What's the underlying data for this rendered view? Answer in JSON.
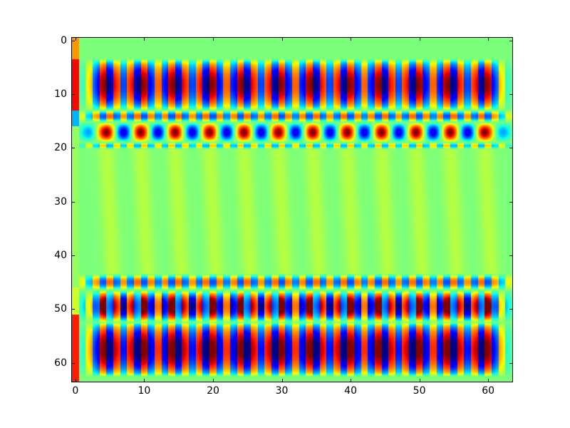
{
  "chart_data": {
    "type": "heatmap",
    "title": "",
    "xlabel": "",
    "ylabel": "",
    "colormap": "jet",
    "grid_shape": [
      64,
      64
    ],
    "x_range": [
      -0.5,
      63.5
    ],
    "y_range": [
      -0.5,
      63.5
    ],
    "y_inverted": true,
    "x_ticks": [
      0,
      10,
      20,
      30,
      40,
      50,
      60
    ],
    "y_ticks": [
      0,
      10,
      20,
      30,
      40,
      50,
      60
    ],
    "background_color": "#ffffff",
    "axes_border_color": "#000000",
    "pattern": {
      "background_level": 0.5,
      "clusters": {
        "first_center": 4.5,
        "period": 5.0,
        "count": 12
      },
      "bands": [
        {
          "y0": 3.5,
          "y1": 13.0,
          "kind": "alt_bars",
          "amp": 0.5,
          "sigma": 1.6,
          "yexp": 0.6,
          "base_frac": 0.05
        },
        {
          "y0": 13.0,
          "y1": 15.2,
          "kind": "alt_bars",
          "amp": 0.3,
          "sigma": 1.8,
          "yexp": 1.0,
          "flip": true,
          "base_frac": 0.3
        },
        {
          "y0": 15.2,
          "y1": 19.0,
          "kind": "blob",
          "amp": 0.5,
          "sigma": 2.2,
          "freq": 1.0,
          "yexp": 1.0
        },
        {
          "y0": 19.0,
          "y1": 20.2,
          "kind": "alt_bars",
          "amp": 0.2,
          "sigma": 1.8,
          "yexp": 1.0,
          "base_frac": 0.35
        },
        {
          "y0": 20.2,
          "y1": 43.5,
          "kind": "streaks",
          "amp": 0.07,
          "sigma": 0.9,
          "drift": 0.04
        },
        {
          "y0": 43.5,
          "y1": 46.5,
          "kind": "alt_bars",
          "amp": 0.3,
          "sigma": 1.8,
          "yexp": 1.0,
          "flip": true,
          "base_frac": 0.35
        },
        {
          "y0": 46.5,
          "y1": 52.5,
          "kind": "mix",
          "amp": 0.42,
          "blob_amp": 0.18,
          "freq": 0.9,
          "sigma": 2.0,
          "yexp": 0.8
        },
        {
          "y0": 52.5,
          "y1": 62.5,
          "kind": "alt_bars",
          "amp": 0.52,
          "sigma": 1.7,
          "yexp": 0.55,
          "base_frac": 0.05
        }
      ],
      "left_column": [
        {
          "y0": -0.5,
          "y1": 3.5,
          "v": 0.75
        },
        {
          "y0": 3.5,
          "y1": 13.0,
          "v": 0.9
        },
        {
          "y0": 13.0,
          "y1": 16.0,
          "v": 0.3
        },
        {
          "y0": 16.0,
          "y1": 46.0,
          "v": 0.53
        },
        {
          "y0": 46.0,
          "y1": 51.0,
          "v": 0.6
        },
        {
          "y0": 51.0,
          "y1": 63.5,
          "v": 0.88
        }
      ]
    }
  }
}
